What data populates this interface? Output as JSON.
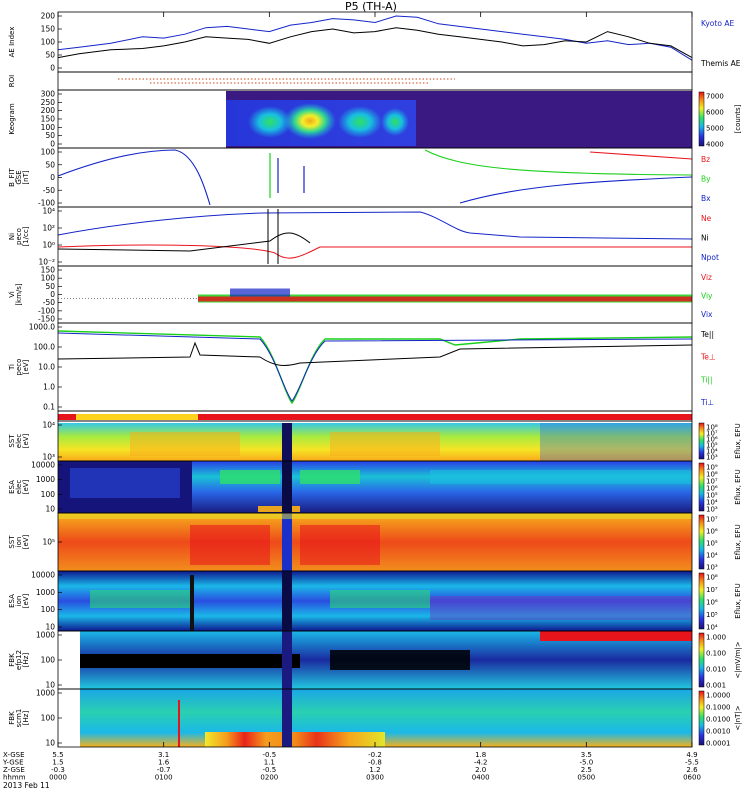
{
  "title": "P5 (TH-A)",
  "colors": {
    "red": "#e8141c",
    "green": "#19d019",
    "blue": "#1424c8",
    "black": "#000000",
    "gold": "#ffd21e"
  },
  "chart_data": {
    "type": "stacked-time-series",
    "time_axis": {
      "ticks": [
        "0000",
        "0100",
        "0200",
        "0300",
        "0400",
        "0500",
        "0600"
      ],
      "rows": [
        {
          "label": "X-GSE",
          "values": [
            "5.5",
            "3.1",
            "-0.5",
            "-0.2",
            "1.8",
            "3.5",
            "4.9"
          ]
        },
        {
          "label": "Y-GSE",
          "values": [
            "1.5",
            "1.6",
            "1.1",
            "-0.8",
            "-4.2",
            "-5.0",
            "-5.5"
          ]
        },
        {
          "label": "Z-GSE",
          "values": [
            "-0.3",
            "-0.7",
            "-0.5",
            "1.2",
            "2.0",
            "2.5",
            "2.6"
          ]
        },
        {
          "label": "hhmm",
          "values": [
            "0000",
            "0100",
            "0200",
            "0300",
            "0400",
            "0500",
            "0600"
          ]
        }
      ],
      "date": "2013 Feb 11"
    },
    "panels": [
      {
        "id": "ae",
        "type": "line",
        "ylabel": "AE Index",
        "yticks": [
          "200",
          "150",
          "100",
          "50",
          "0"
        ],
        "legend": [
          {
            "text": "Kyoto AE",
            "color": "#1424c8"
          },
          {
            "text": "Themis AE",
            "color": "#000000"
          }
        ],
        "series": [
          {
            "name": "Kyoto AE",
            "color": "#1424c8",
            "x": [
              0,
              0.2,
              0.5,
              0.8,
              1.0,
              1.2,
              1.4,
              1.6,
              1.8,
              2.0,
              2.2,
              2.4,
              2.6,
              2.8,
              3.0,
              3.2,
              3.4,
              3.6,
              3.8,
              4.0,
              4.2,
              4.4,
              4.6,
              4.8,
              5.0,
              5.2,
              5.4,
              5.6,
              5.8,
              6.0
            ],
            "y": [
              70,
              80,
              95,
              120,
              115,
              130,
              155,
              160,
              150,
              140,
              165,
              175,
              190,
              185,
              175,
              200,
              195,
              170,
              160,
              150,
              140,
              130,
              120,
              110,
              95,
              105,
              90,
              95,
              80,
              30
            ]
          },
          {
            "name": "Themis AE",
            "color": "#000000",
            "x": [
              0,
              0.2,
              0.5,
              0.8,
              1.0,
              1.2,
              1.4,
              1.6,
              1.8,
              2.0,
              2.2,
              2.4,
              2.6,
              2.8,
              3.0,
              3.2,
              3.4,
              3.6,
              3.8,
              4.0,
              4.2,
              4.4,
              4.6,
              4.8,
              5.0,
              5.2,
              5.4,
              5.6,
              5.8,
              6.0
            ],
            "y": [
              40,
              55,
              70,
              75,
              85,
              100,
              120,
              115,
              110,
              95,
              120,
              140,
              150,
              135,
              140,
              155,
              145,
              130,
              120,
              110,
              100,
              85,
              90,
              105,
              100,
              140,
              120,
              95,
              85,
              40
            ]
          }
        ]
      },
      {
        "id": "roi",
        "type": "marker",
        "ylabel": "ROI"
      },
      {
        "id": "keogram",
        "type": "image",
        "ylabel": "Keogram",
        "yticks": [
          "300",
          "250",
          "200",
          "150",
          "100",
          "50",
          "0"
        ],
        "colorbar": {
          "label": "[counts]",
          "ticks": [
            "7000",
            "6000",
            "5000",
            "4000"
          ]
        }
      },
      {
        "id": "bfit",
        "type": "line",
        "ylabel": "B_FIT\nGSE\n[nT]",
        "yticks": [
          "100",
          "50",
          "0",
          "-50",
          "-100"
        ],
        "legend": [
          {
            "text": "Bz",
            "color": "#e8141c"
          },
          {
            "text": "By",
            "color": "#19d019"
          },
          {
            "text": "Bx",
            "color": "#1424c8"
          }
        ]
      },
      {
        "id": "ni",
        "type": "line-log",
        "ylabel": "Ni\npeco\n[1/cc]",
        "yticks": [
          "10⁴",
          "10²",
          "10⁰",
          "10⁻²"
        ],
        "legend": [
          {
            "text": "Ne",
            "color": "#e8141c"
          },
          {
            "text": "Ni",
            "color": "#000000"
          },
          {
            "text": "Npot",
            "color": "#1424c8"
          }
        ]
      },
      {
        "id": "vi",
        "type": "line",
        "ylabel": "Vi\n[km/s]",
        "yticks": [
          "150",
          "100",
          "50",
          "0",
          "-50",
          "-100",
          "-150"
        ],
        "legend": [
          {
            "text": "Viz",
            "color": "#e8141c"
          },
          {
            "text": "Viy",
            "color": "#19d019"
          },
          {
            "text": "Vix",
            "color": "#1424c8"
          }
        ]
      },
      {
        "id": "ti",
        "type": "line-log",
        "ylabel": "Ti\npeco\n[eV]",
        "yticks": [
          "1000.0",
          "100.0",
          "10.0",
          "1.0",
          "0.1"
        ],
        "legend": [
          {
            "text": "Te||",
            "color": "#000000"
          },
          {
            "text": "Te⊥",
            "color": "#e8141c"
          },
          {
            "text": "Ti||",
            "color": "#19d019"
          },
          {
            "text": "Ti⊥",
            "color": "#1424c8"
          }
        ]
      },
      {
        "id": "mode",
        "type": "mode-bar"
      },
      {
        "id": "sst-e",
        "type": "spectrogram",
        "ylabel": "SST\nelec\n[eV]",
        "yticks": [
          "10⁴",
          "10³"
        ],
        "colorbar": {
          "label": "Eflux, EFU",
          "ticks": [
            "10⁸",
            "10⁷",
            "10⁶",
            "10⁵",
            "10⁴",
            "10³"
          ]
        }
      },
      {
        "id": "esa-e",
        "type": "spectrogram",
        "ylabel": "ESA\nelec\n[eV]",
        "yticks": [
          "10000",
          "1000",
          "100",
          "10"
        ],
        "colorbar": {
          "label": "Eflux, EFU",
          "ticks": [
            "10⁹",
            "10⁸",
            "10⁷",
            "10⁶",
            "10⁵",
            "10⁴",
            "10³"
          ]
        }
      },
      {
        "id": "sst-i",
        "type": "spectrogram",
        "ylabel": "SST\nion\n[eV]",
        "yticks": [
          "10⁵"
        ],
        "colorbar": {
          "label": "Eflux, EFU",
          "ticks": [
            "10⁷",
            "10⁶",
            "10⁵",
            "10⁴",
            "10³"
          ]
        }
      },
      {
        "id": "esa-i",
        "type": "spectrogram",
        "ylabel": "ESA\nion\n[eV]",
        "yticks": [
          "10000",
          "1000",
          "100",
          "10"
        ],
        "colorbar": {
          "label": "Eflux, EFU",
          "ticks": [
            "10⁸",
            "10⁷",
            "10⁶",
            "10⁵",
            "10⁴"
          ]
        }
      },
      {
        "id": "fbk-e",
        "type": "spectrogram",
        "ylabel": "FBK\nefp12\n[Hz]",
        "yticks": [
          "1000",
          "100",
          "10"
        ],
        "colorbar": {
          "label": "<|mV/m|>",
          "ticks": [
            "1.000",
            "0.100",
            "0.010",
            "0.001"
          ]
        }
      },
      {
        "id": "fbk-b",
        "type": "spectrogram",
        "ylabel": "FBK\nscm1\n[Hz]",
        "yticks": [
          "1000",
          "100",
          "10"
        ],
        "colorbar": {
          "label": "<|nT|>",
          "ticks": [
            "1.0000",
            "0.1000",
            "0.0100",
            "0.0010",
            "0.0001"
          ]
        }
      }
    ]
  }
}
